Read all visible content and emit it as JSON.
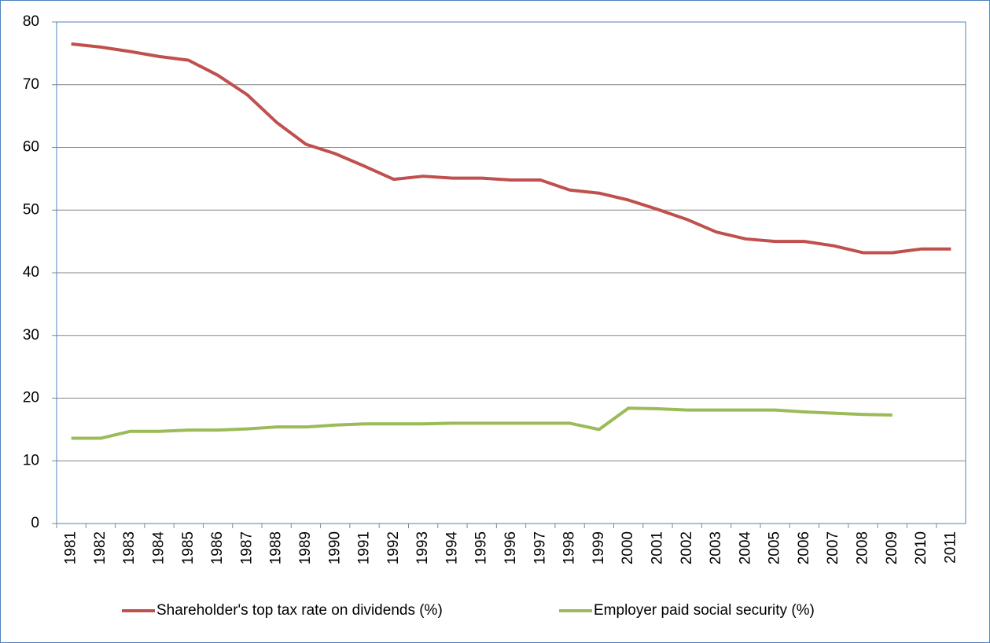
{
  "chart_data": {
    "type": "line",
    "categories": [
      "1981",
      "1982",
      "1983",
      "1984",
      "1985",
      "1986",
      "1987",
      "1988",
      "1989",
      "1990",
      "1991",
      "1992",
      "1993",
      "1994",
      "1995",
      "1996",
      "1997",
      "1998",
      "1999",
      "2000",
      "2001",
      "2002",
      "2003",
      "2004",
      "2005",
      "2006",
      "2007",
      "2008",
      "2009",
      "2010",
      "2011"
    ],
    "series": [
      {
        "name": "Shareholder's top tax rate on dividends (%)",
        "color": "#c0504d",
        "values": [
          76.5,
          76.0,
          75.3,
          74.5,
          73.9,
          71.5,
          68.4,
          64.0,
          60.5,
          59.0,
          57.0,
          54.9,
          55.4,
          55.1,
          55.1,
          54.8,
          54.8,
          53.2,
          52.7,
          51.6,
          50.1,
          48.5,
          46.5,
          45.4,
          45.0,
          45.0,
          44.3,
          43.2,
          43.2,
          43.8,
          43.8
        ]
      },
      {
        "name": "Employer paid social security (%)",
        "color": "#9bbb59",
        "values": [
          13.6,
          13.6,
          14.7,
          14.7,
          14.9,
          14.9,
          15.1,
          15.4,
          15.4,
          15.7,
          15.9,
          15.9,
          15.9,
          16.0,
          16.0,
          16.0,
          16.0,
          16.0,
          15.0,
          18.4,
          18.3,
          18.1,
          18.1,
          18.1,
          18.1,
          17.8,
          17.6,
          17.4,
          17.3,
          null,
          null
        ]
      }
    ],
    "ylim": [
      0,
      80
    ],
    "yticks": [
      0,
      10,
      20,
      30,
      40,
      50,
      60,
      70,
      80
    ],
    "grid": true,
    "legend": "bottom"
  }
}
